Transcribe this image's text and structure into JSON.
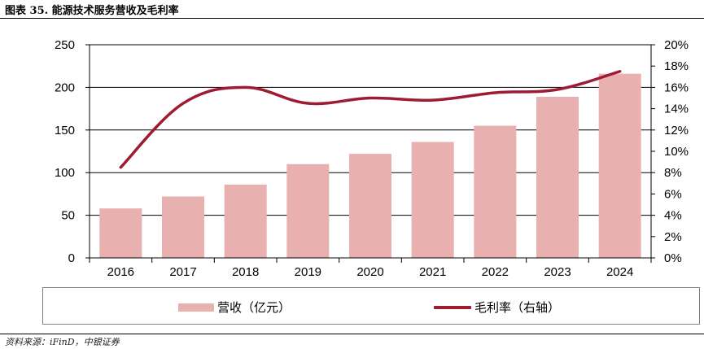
{
  "header": {
    "title": "图表 35. 能源技术服务营收及毛利率"
  },
  "footer": {
    "source": "资料来源：iFinD，中银证券"
  },
  "colors": {
    "bar": "#e8b0ae",
    "line": "#9e1b32",
    "axis": "#000000",
    "grid": "#000000"
  },
  "chart_data": {
    "type": "bar",
    "title": "能源技术服务营收及毛利率",
    "categories": [
      "2016",
      "2017",
      "2018",
      "2019",
      "2020",
      "2021",
      "2022",
      "2023",
      "2024"
    ],
    "series": [
      {
        "name": "营收（亿元）",
        "type": "bar",
        "axis": "left",
        "values": [
          58,
          72,
          86,
          110,
          122,
          136,
          155,
          189,
          216
        ]
      },
      {
        "name": "毛利率（右轴）",
        "type": "line",
        "axis": "right",
        "values": [
          8.5,
          14.5,
          16.0,
          14.5,
          15.0,
          14.8,
          15.5,
          15.8,
          17.5
        ]
      }
    ],
    "left_axis": {
      "ylim": [
        0,
        250
      ],
      "ticks": [
        0,
        50,
        100,
        150,
        200,
        250
      ],
      "tick_labels": [
        "0",
        "50",
        "100",
        "150",
        "200",
        "250"
      ]
    },
    "right_axis": {
      "ylim": [
        0,
        20
      ],
      "ticks": [
        0,
        2,
        4,
        6,
        8,
        10,
        12,
        14,
        16,
        18,
        20
      ],
      "tick_labels": [
        "0%",
        "2%",
        "4%",
        "6%",
        "8%",
        "10%",
        "12%",
        "14%",
        "16%",
        "18%",
        "20%"
      ]
    },
    "grid": true,
    "legend_position": "bottom"
  }
}
